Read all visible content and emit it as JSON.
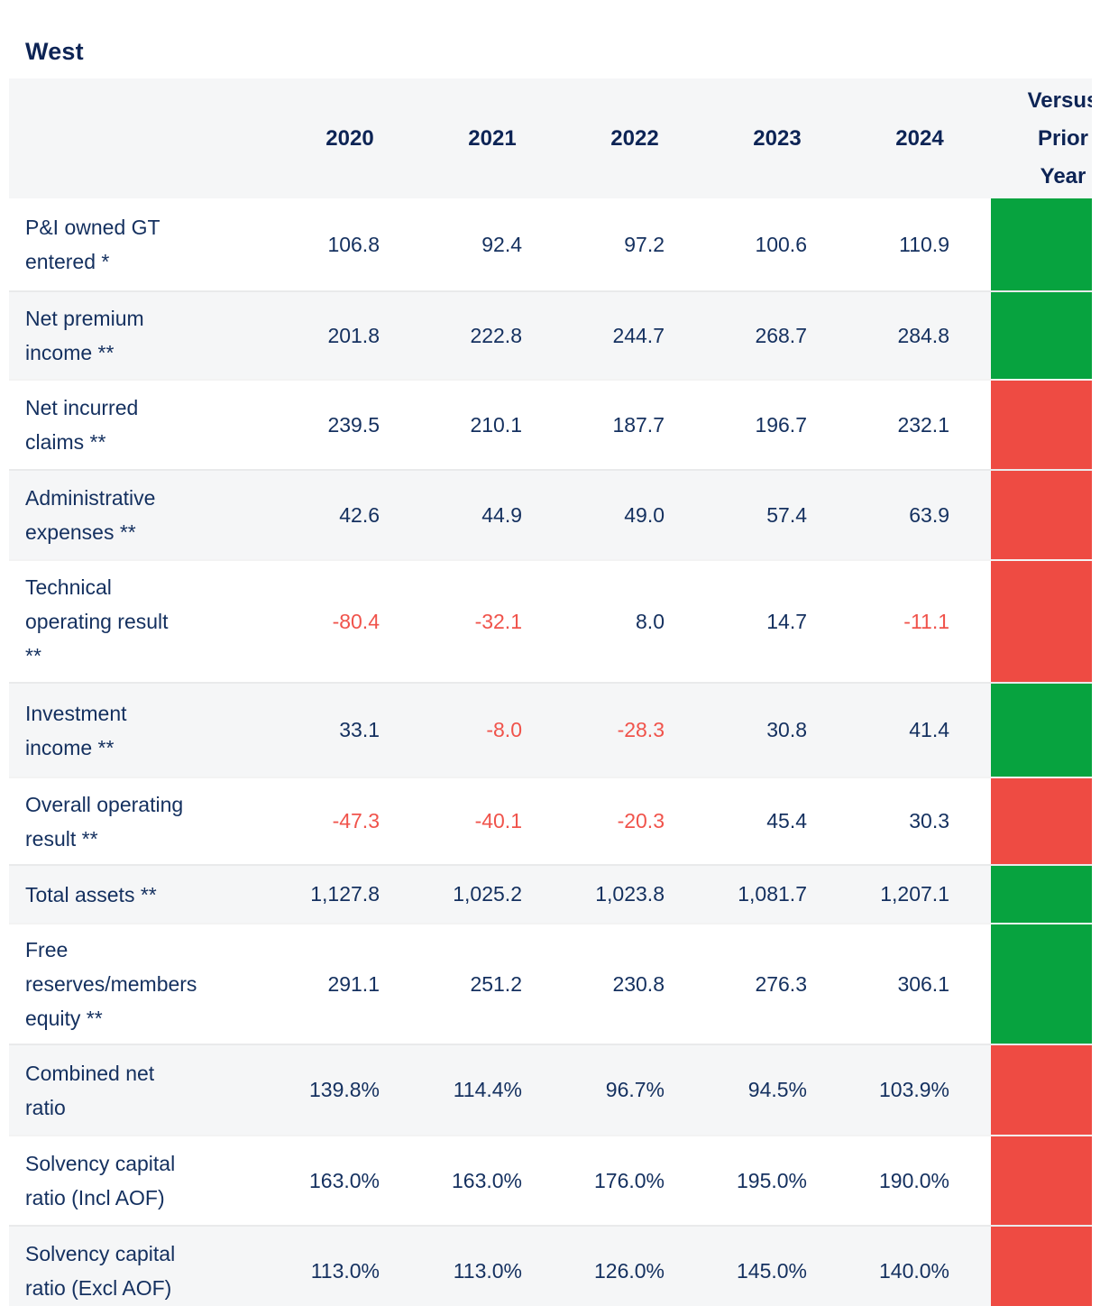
{
  "title": "West",
  "colors": {
    "positive_indicator": "#07a33f",
    "negative_indicator": "#ee4b43",
    "text_navy": "#14305f",
    "negative_value_text": "#f0534b",
    "alt_row_background": "#f5f6f7"
  },
  "table": {
    "year_columns": [
      "2020",
      "2021",
      "2022",
      "2023",
      "2024"
    ],
    "versus_header": "Versus Prior Year",
    "versus_header_lines": [
      "Versus",
      "Prior",
      "Year"
    ],
    "rows": [
      {
        "label": "P&I owned GT entered *",
        "label_lines": [
          "P&I owned GT",
          "entered *"
        ],
        "values": [
          "106.8",
          "92.4",
          "97.2",
          "100.6",
          "110.9"
        ],
        "indicator": "green"
      },
      {
        "label": "Net premium income **",
        "label_lines": [
          "Net premium",
          "income **"
        ],
        "values": [
          "201.8",
          "222.8",
          "244.7",
          "268.7",
          "284.8"
        ],
        "indicator": "green"
      },
      {
        "label": "Net incurred claims **",
        "label_lines": [
          "Net incurred",
          "claims **"
        ],
        "values": [
          "239.5",
          "210.1",
          "187.7",
          "196.7",
          "232.1"
        ],
        "indicator": "red"
      },
      {
        "label": "Administrative expenses **",
        "label_lines": [
          "Administrative",
          "expenses **"
        ],
        "values": [
          "42.6",
          "44.9",
          "49.0",
          "57.4",
          "63.9"
        ],
        "indicator": "red"
      },
      {
        "label": "Technical operating result **",
        "label_lines": [
          "Technical",
          "operating result",
          "**"
        ],
        "values": [
          "-80.4",
          "-32.1",
          "8.0",
          "14.7",
          "-11.1"
        ],
        "indicator": "red"
      },
      {
        "label": "Investment income **",
        "label_lines": [
          "Investment",
          "income **"
        ],
        "values": [
          "33.1",
          "-8.0",
          "-28.3",
          "30.8",
          "41.4"
        ],
        "indicator": "green"
      },
      {
        "label": "Overall operating result **",
        "label_lines": [
          "Overall operating",
          "result **"
        ],
        "values": [
          "-47.3",
          "-40.1",
          "-20.3",
          "45.4",
          "30.3"
        ],
        "indicator": "red"
      },
      {
        "label": "Total assets **",
        "label_lines": [
          "Total assets **"
        ],
        "values": [
          "1,127.8",
          "1,025.2",
          "1,023.8",
          "1,081.7",
          "1,207.1"
        ],
        "indicator": "green"
      },
      {
        "label": "Free reserves/members equity **",
        "label_lines": [
          "Free",
          "reserves/members",
          "equity **"
        ],
        "values": [
          "291.1",
          "251.2",
          "230.8",
          "276.3",
          "306.1"
        ],
        "indicator": "green"
      },
      {
        "label": "Combined net ratio",
        "label_lines": [
          "Combined net",
          "ratio"
        ],
        "values": [
          "139.8%",
          "114.4%",
          "96.7%",
          "94.5%",
          "103.9%"
        ],
        "indicator": "red"
      },
      {
        "label": "Solvency capital ratio (Incl AOF)",
        "label_lines": [
          "Solvency capital",
          "ratio (Incl AOF)"
        ],
        "values": [
          "163.0%",
          "163.0%",
          "176.0%",
          "195.0%",
          "190.0%"
        ],
        "indicator": "red"
      },
      {
        "label": "Solvency capital ratio (Excl AOF)",
        "label_lines": [
          "Solvency capital",
          "ratio (Excl AOF)"
        ],
        "values": [
          "113.0%",
          "113.0%",
          "126.0%",
          "145.0%",
          "140.0%"
        ],
        "indicator": "red"
      }
    ]
  }
}
